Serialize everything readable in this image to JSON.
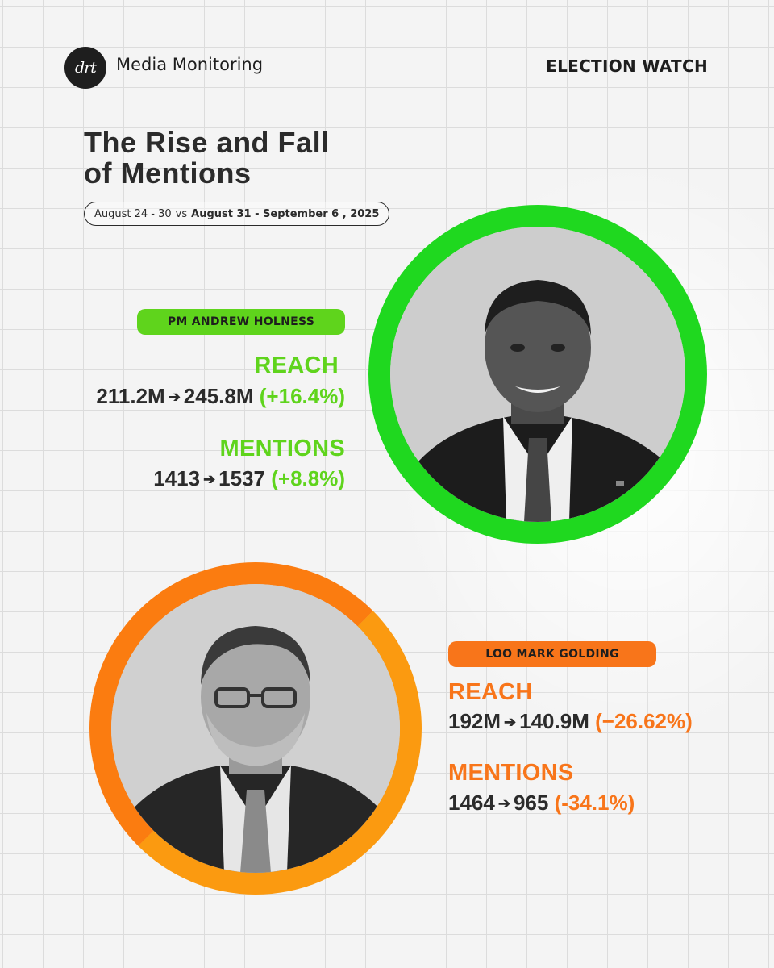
{
  "header": {
    "logo_text": "drt",
    "brand": "Media Monitoring",
    "section": "ELECTION WATCH"
  },
  "title": {
    "line1": "The Rise and Fall",
    "line2": "of Mentions"
  },
  "date_range": {
    "previous": "August 24 - 30",
    "separator": "vs",
    "current": "August 31 - September 6 , 2025"
  },
  "candidates": [
    {
      "badge": "PM ANDREW HOLNESS",
      "accent": "#5fd41c",
      "reach_label": "REACH",
      "reach_from": "211.2M",
      "reach_to": "245.8M",
      "reach_change": "(+16.4%)",
      "mentions_label": "MENTIONS",
      "mentions_from": "1413",
      "mentions_to": "1537",
      "mentions_change": "(+8.8%)",
      "portrait": "portrait-holness"
    },
    {
      "badge": "LOO MARK GOLDING",
      "accent": "#f8751a",
      "reach_label": "REACH",
      "reach_from": "192M",
      "reach_to": "140.9M",
      "reach_change": "(−26.62%)",
      "mentions_label": "MENTIONS",
      "mentions_from": "1464",
      "mentions_to": "965",
      "mentions_change": "(-34.1%)",
      "portrait": "portrait-golding"
    }
  ],
  "arrow_glyph": "➔"
}
